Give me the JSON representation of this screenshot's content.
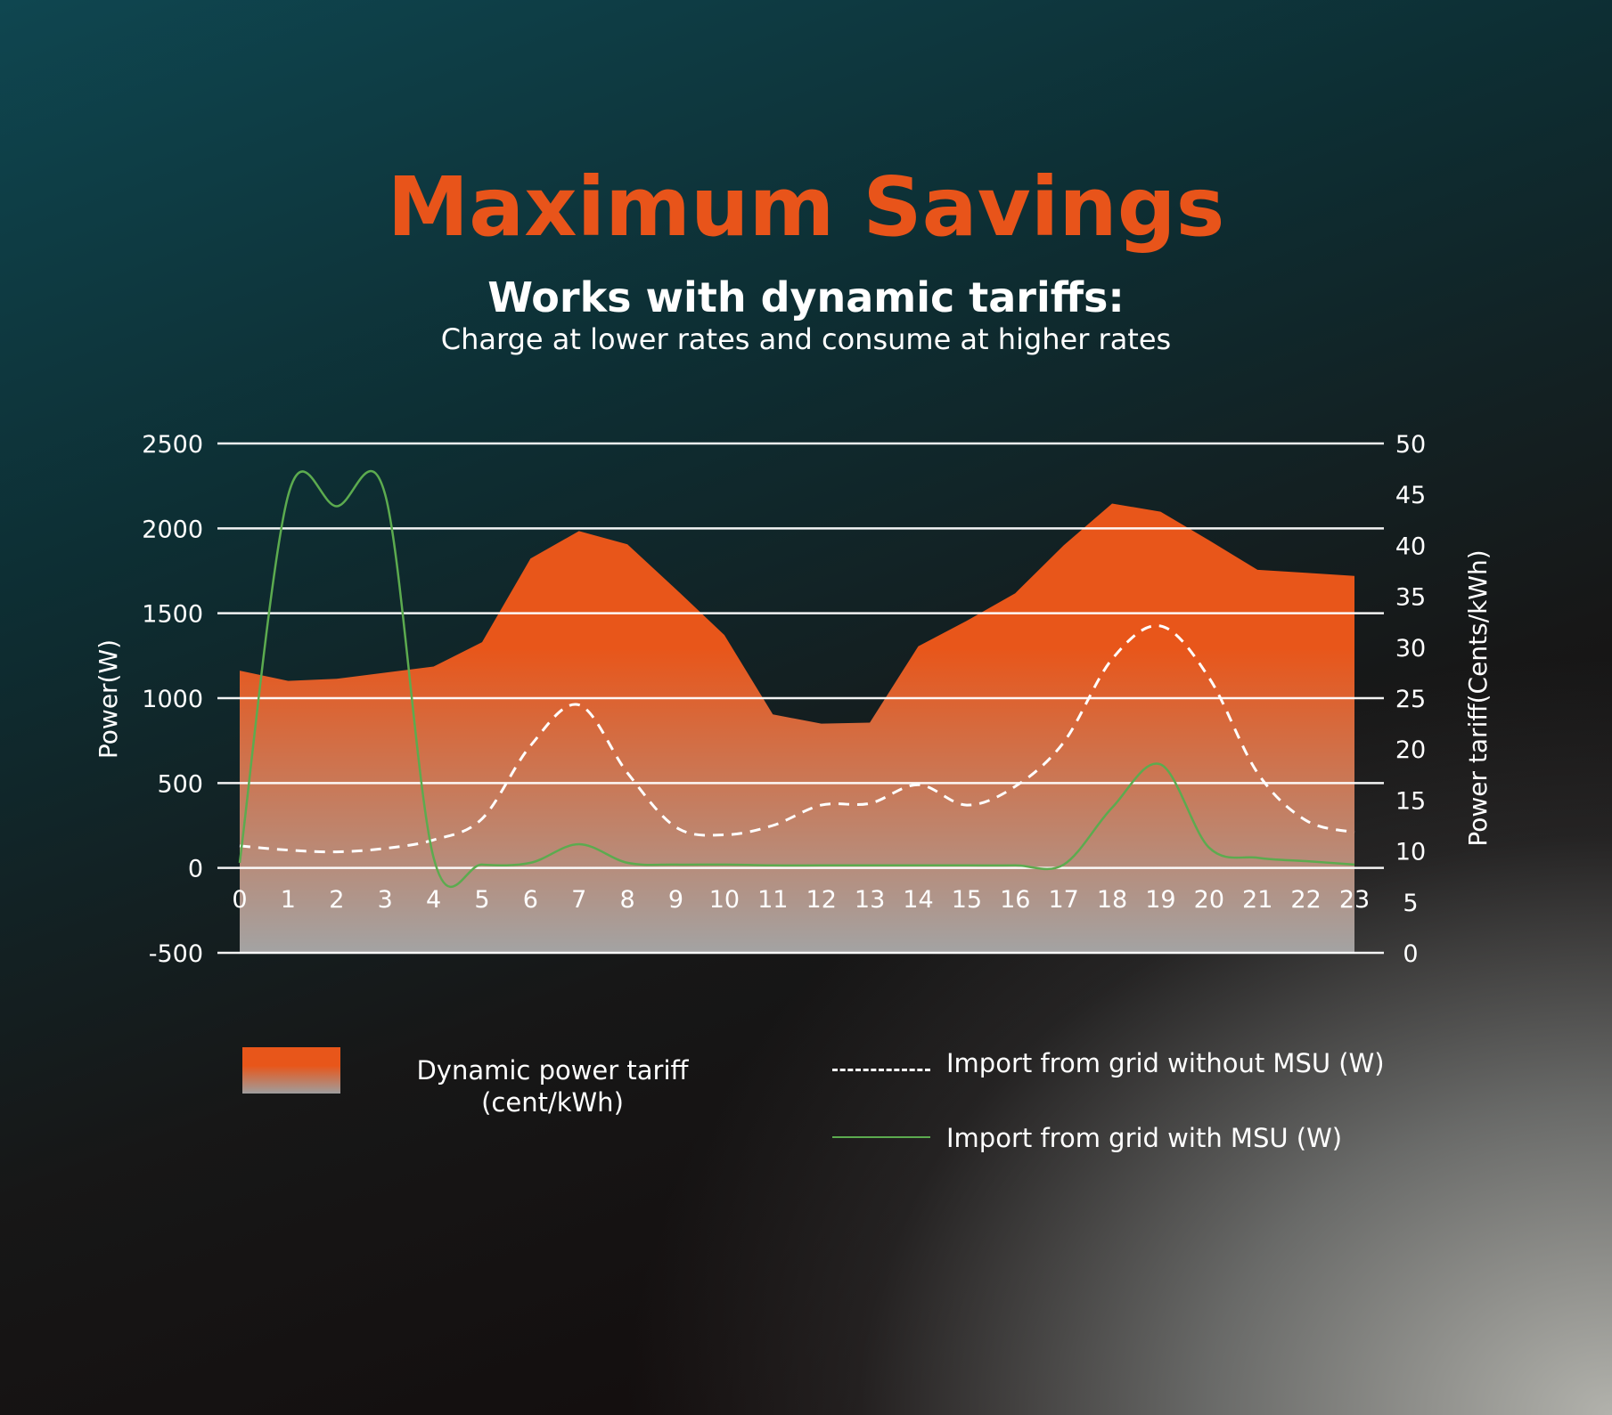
{
  "header": {
    "title": "Maximum Savings",
    "subtitle": "Works with dynamic tariffs:",
    "subtext": "Charge at lower rates and consume at higher rates"
  },
  "legend": {
    "tariff_line1": "Dynamic power tariff",
    "tariff_line2": "(cent/kWh)",
    "without_msu": "Import from grid without MSU (W)",
    "with_msu": "Import from grid with MSU (W)"
  },
  "colors": {
    "tariff_area": "#e8561a",
    "title": "#e8541a",
    "without_msu_line": "#ffffff",
    "with_msu_line": "#5cab4f",
    "gridline": "#ffffff"
  },
  "chart_data": {
    "type": "area",
    "title": "",
    "x": [
      "0",
      "1",
      "2",
      "3",
      "4",
      "5",
      "6",
      "7",
      "8",
      "9",
      "10",
      "11",
      "12",
      "13",
      "14",
      "15",
      "16",
      "17",
      "18",
      "19",
      "20",
      "21",
      "22",
      "23"
    ],
    "xlabel": "",
    "ylabel_left": "Power(W)",
    "ylabel_right": "Power tariff(Cents/kWh)",
    "ylim_left": [
      -500,
      2500
    ],
    "yticks_left": [
      2500,
      2000,
      1500,
      1000,
      500,
      0,
      -500
    ],
    "ylim_right": [
      0,
      50
    ],
    "yticks_right": [
      50,
      45,
      40,
      35,
      30,
      25,
      20,
      15,
      10,
      5,
      0
    ],
    "grid": true,
    "legend_position": "bottom",
    "series": [
      {
        "name": "Dynamic power tariff (cent/kWh)",
        "axis": "right",
        "type": "area",
        "values": [
          27.7,
          26.7,
          26.9,
          27.5,
          28.1,
          30.5,
          38.7,
          41.4,
          40.1,
          35.7,
          31.2,
          23.4,
          22.5,
          22.6,
          30.1,
          32.6,
          35.3,
          40.0,
          44.1,
          43.3,
          40.5,
          37.6,
          37.3,
          37.0
        ]
      },
      {
        "name": "Import from grid without MSU (W)",
        "axis": "left",
        "type": "line",
        "style": "dashed",
        "values": [
          130,
          105,
          95,
          115,
          165,
          290,
          720,
          960,
          560,
          240,
          195,
          250,
          370,
          380,
          490,
          370,
          480,
          740,
          1230,
          1425,
          1120,
          560,
          280,
          210
        ]
      },
      {
        "name": "Import from grid with MSU (W)",
        "axis": "left",
        "type": "line",
        "style": "solid",
        "values": [
          30,
          2195,
          2130,
          2200,
          60,
          20,
          30,
          140,
          30,
          20,
          20,
          15,
          15,
          15,
          15,
          15,
          15,
          20,
          355,
          610,
          120,
          60,
          40,
          20
        ]
      }
    ]
  }
}
